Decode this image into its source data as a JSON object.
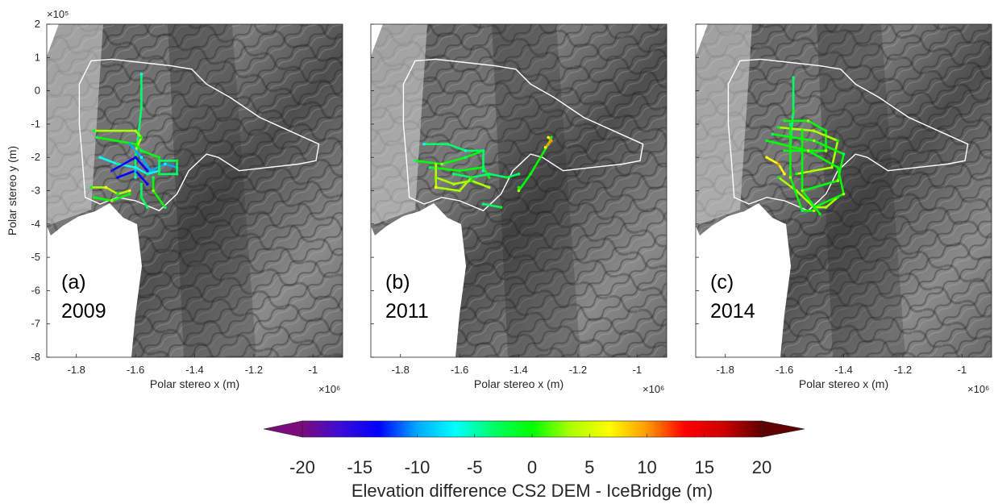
{
  "chart_data": [
    {
      "type": "scatter",
      "panel_label": "(a)",
      "year": "2009",
      "xlabel": "Polar stereo x (m)",
      "ylabel": "Polar stereo y (m)",
      "x_exponent": "×10⁶",
      "y_exponent": "×10⁵",
      "xticks": [
        "-1.8",
        "-1.6",
        "-1.4",
        "-1.2",
        "-1"
      ],
      "yticks": [
        "2",
        "1",
        "0",
        "-1",
        "-2",
        "-3",
        "-4",
        "-5",
        "-6",
        "-7",
        "-8"
      ],
      "xlim": [
        -1.9,
        -0.9
      ],
      "ylim": [
        -8,
        2
      ],
      "tracks": [
        {
          "x": [
            -1.58,
            -1.58,
            -1.59,
            -1.6,
            -1.6
          ],
          "y": [
            0.5,
            -0.5,
            -1.3,
            -2.0,
            -2.6
          ],
          "diff": -4
        },
        {
          "x": [
            -1.74,
            -1.6,
            -1.58,
            -1.6
          ],
          "y": [
            -1.2,
            -1.2,
            -1.4,
            -1.8
          ],
          "diff": 2
        },
        {
          "x": [
            -1.73,
            -1.6,
            -1.58,
            -1.52
          ],
          "y": [
            -1.4,
            -1.6,
            -1.8,
            -2.0
          ],
          "diff": -1
        },
        {
          "x": [
            -1.72,
            -1.66,
            -1.6,
            -1.56,
            -1.52
          ],
          "y": [
            -2.0,
            -2.2,
            -2.3,
            -2.5,
            -2.4
          ],
          "diff": -6
        },
        {
          "x": [
            -1.62,
            -1.58,
            -1.55,
            -1.5,
            -1.46
          ],
          "y": [
            -1.6,
            -2.0,
            -2.4,
            -2.2,
            -2.3
          ],
          "diff": -9
        },
        {
          "x": [
            -1.52,
            -1.46,
            -1.46,
            -1.52,
            -1.52
          ],
          "y": [
            -2.1,
            -2.1,
            -2.5,
            -2.5,
            -2.1
          ],
          "diff": -3
        },
        {
          "x": [
            -1.66,
            -1.6,
            -1.56
          ],
          "y": [
            -2.6,
            -2.4,
            -2.8
          ],
          "diff": -12
        },
        {
          "x": [
            -1.75,
            -1.7,
            -1.66,
            -1.62
          ],
          "y": [
            -2.9,
            -2.9,
            -3.1,
            -3.0
          ],
          "diff": 3
        },
        {
          "x": [
            -1.74,
            -1.68,
            -1.62
          ],
          "y": [
            -3.2,
            -3.3,
            -3.1
          ],
          "diff": 1
        },
        {
          "x": [
            -1.58,
            -1.58,
            -1.56
          ],
          "y": [
            -2.8,
            -3.2,
            -3.5
          ],
          "diff": -2
        },
        {
          "x": [
            -1.54,
            -1.54,
            -1.5
          ],
          "y": [
            -2.6,
            -3.0,
            -3.5
          ],
          "diff": 0
        },
        {
          "x": [
            -1.68,
            -1.6,
            -1.56
          ],
          "y": [
            -2.4,
            -2.0,
            -2.4
          ],
          "diff": -15
        }
      ]
    },
    {
      "type": "scatter",
      "panel_label": "(b)",
      "year": "2011",
      "xlabel": "Polar stereo x (m)",
      "x_exponent": "×10⁶",
      "xticks": [
        "-1.8",
        "-1.6",
        "-1.4",
        "-1.2",
        "-1"
      ],
      "xlim": [
        -1.9,
        -0.9
      ],
      "ylim": [
        -8,
        2
      ],
      "tracks": [
        {
          "x": [
            -1.75,
            -1.66,
            -1.58,
            -1.52
          ],
          "y": [
            -2.1,
            -2.2,
            -2.0,
            -1.8
          ],
          "diff": 0
        },
        {
          "x": [
            -1.72,
            -1.64,
            -1.58,
            -1.52,
            -1.52
          ],
          "y": [
            -1.6,
            -1.6,
            -1.8,
            -1.8,
            -2.4
          ],
          "diff": -5
        },
        {
          "x": [
            -1.7,
            -1.6,
            -1.52,
            -1.5
          ],
          "y": [
            -2.3,
            -2.4,
            -2.3,
            -2.6
          ],
          "diff": -1
        },
        {
          "x": [
            -1.68,
            -1.62,
            -1.56,
            -1.5
          ],
          "y": [
            -2.6,
            -2.8,
            -2.7,
            -2.9
          ],
          "diff": 2
        },
        {
          "x": [
            -1.68,
            -1.68,
            -1.6,
            -1.56
          ],
          "y": [
            -2.2,
            -2.9,
            -3.0,
            -2.6
          ],
          "diff": 4
        },
        {
          "x": [
            -1.62,
            -1.56,
            -1.5,
            -1.44,
            -1.4
          ],
          "y": [
            -2.5,
            -2.6,
            -2.5,
            -2.6,
            -2.5
          ],
          "diff": -3
        },
        {
          "x": [
            -1.4,
            -1.4,
            -1.36,
            -1.3,
            -1.29
          ],
          "y": [
            -2.9,
            -3.0,
            -2.5,
            -1.6,
            -1.4
          ],
          "diff": 1
        },
        {
          "x": [
            -1.3,
            -1.29,
            -1.31
          ],
          "y": [
            -1.4,
            -1.5,
            -1.7
          ],
          "diff": 9
        },
        {
          "x": [
            -1.52,
            -1.46
          ],
          "y": [
            -3.4,
            -3.5
          ],
          "diff": -2
        }
      ]
    },
    {
      "type": "scatter",
      "panel_label": "(c)",
      "year": "2014",
      "xlabel": "Polar stereo x (m)",
      "x_exponent": "×10⁶",
      "xticks": [
        "-1.8",
        "-1.6",
        "-1.4",
        "-1.2",
        "-1"
      ],
      "xlim": [
        -1.9,
        -0.9
      ],
      "ylim": [
        -8,
        2
      ],
      "tracks": [
        {
          "x": [
            -1.57,
            -1.57,
            -1.58
          ],
          "y": [
            0.4,
            -0.6,
            -1.6
          ],
          "diff": -3
        },
        {
          "x": [
            -1.6,
            -1.52,
            -1.46,
            -1.46,
            -1.6
          ],
          "y": [
            -0.9,
            -0.9,
            -1.2,
            -1.8,
            -1.8
          ],
          "diff": 1
        },
        {
          "x": [
            -1.62,
            -1.5,
            -1.42,
            -1.44,
            -1.56
          ],
          "y": [
            -1.1,
            -1.2,
            -1.5,
            -2.3,
            -2.5
          ],
          "diff": 2
        },
        {
          "x": [
            -1.64,
            -1.5,
            -1.4,
            -1.42,
            -1.54
          ],
          "y": [
            -1.3,
            -1.5,
            -1.9,
            -2.7,
            -3.0
          ],
          "diff": 0
        },
        {
          "x": [
            -1.66,
            -1.52,
            -1.42,
            -1.4,
            -1.5
          ],
          "y": [
            -1.5,
            -1.8,
            -2.3,
            -3.1,
            -3.5
          ],
          "diff": 1
        },
        {
          "x": [
            -1.62,
            -1.56,
            -1.5,
            -1.46,
            -1.42
          ],
          "y": [
            -2.6,
            -3.0,
            -3.5,
            -3.5,
            -3.2
          ],
          "diff": 2
        },
        {
          "x": [
            -1.58,
            -1.58,
            -1.54,
            -1.5
          ],
          "y": [
            -1.0,
            -2.6,
            -3.6,
            -3.6
          ],
          "diff": 0
        },
        {
          "x": [
            -1.54,
            -1.54,
            -1.48
          ],
          "y": [
            -1.2,
            -3.0,
            -3.7
          ],
          "diff": 1
        },
        {
          "x": [
            -1.66,
            -1.62,
            -1.6
          ],
          "y": [
            -2.0,
            -2.2,
            -2.5
          ],
          "diff": 8
        }
      ]
    }
  ],
  "colorbar": {
    "label": "Elevation difference CS2 DEM - IceBridge (m)",
    "ticks": [
      "-20",
      "-15",
      "-10",
      "-5",
      "0",
      "5",
      "10",
      "15",
      "20"
    ],
    "range": [
      -20,
      20
    ],
    "colormap": [
      "#7b0c7b",
      "#3b0bd8",
      "#0000ff",
      "#00aaff",
      "#00ffff",
      "#00ff66",
      "#00ff00",
      "#aaff00",
      "#ffff00",
      "#ff9900",
      "#ff0000",
      "#cc0000",
      "#600000"
    ]
  }
}
